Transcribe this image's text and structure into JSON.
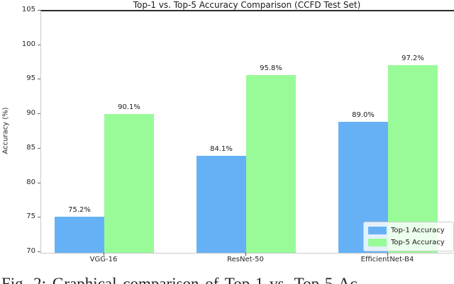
{
  "chart_data": {
    "type": "bar",
    "title": "Top-1 vs. Top-5 Accuracy Comparison (CCFD Test Set)",
    "categories": [
      "VGG-16",
      "ResNet-50",
      "EfficientNet-B4"
    ],
    "series": [
      {
        "name": "Top-1 Accuracy",
        "color": "#66b1f5",
        "values": [
          75.2,
          84.1,
          89.0
        ],
        "labels": [
          "75.2%",
          "84.1%",
          "89.0%"
        ]
      },
      {
        "name": "Top-5 Accuracy",
        "color": "#98fb98",
        "values": [
          90.1,
          95.8,
          97.2
        ],
        "labels": [
          "90.1%",
          "95.8%",
          "97.2%"
        ]
      }
    ],
    "xlabel": "",
    "ylabel": "Accuracy (%)",
    "ylim": [
      70,
      105
    ],
    "yticks": [
      70,
      75,
      80,
      85,
      90,
      95,
      100,
      105
    ],
    "grid": false,
    "legend_position": "lower right"
  },
  "caption": "Fig. 2: Graphical comparison of Top-1 vs. Top-5 Ac"
}
